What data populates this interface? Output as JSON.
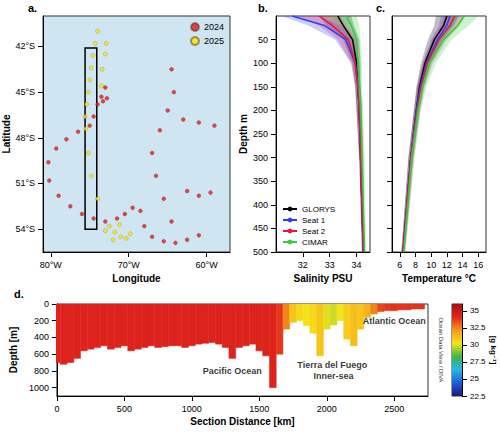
{
  "chart_data": [
    {
      "panel": "a.",
      "type": "scatter",
      "xlabel": "Longitude",
      "ylabel": "Latitude",
      "xlim": [
        -81,
        -57
      ],
      "ylim": [
        -55.5,
        -40
      ],
      "xticks": [
        {
          "value": -80,
          "label": "80°W"
        },
        {
          "value": -70,
          "label": "70°W"
        },
        {
          "value": -60,
          "label": "60°W"
        }
      ],
      "yticks": [
        {
          "value": -54,
          "label": "54°S"
        },
        {
          "value": -51,
          "label": "51°S"
        },
        {
          "value": -48,
          "label": "48°S"
        },
        {
          "value": -45,
          "label": "45°S"
        },
        {
          "value": -42,
          "label": "42°S"
        }
      ],
      "grid": false,
      "legend": "upper right",
      "box": {
        "lon": [
          -75.6,
          -74.1
        ],
        "lat": [
          -54,
          -42.1
        ]
      },
      "series": [
        {
          "name": "2024",
          "color": "#e8161b",
          "marker": "circle",
          "x": [
            -73.5,
            -73.3,
            -74.0,
            -73.0,
            -72.8,
            -74.5,
            -75.0,
            -76.5,
            -78.0,
            -79.3,
            -80.3,
            -80.2,
            -79.0,
            -77.5,
            -76.0,
            -74.5,
            -73.0,
            -71.5,
            -70.5,
            -69.5,
            -68.5,
            -68.0,
            -67.0,
            -65.5,
            -64.0,
            -62.5,
            -61.0,
            -64.5,
            -65.5,
            -66.5,
            -67.0,
            -66.0,
            -65.0,
            -64.2,
            -64.5,
            -63.0,
            -61.0,
            -59.0,
            -62.5,
            -61.0,
            -59.5
          ],
          "values": [
            -45.3,
            -45.6,
            -45.8,
            -44.7,
            -45.4,
            -46.6,
            -47.2,
            -47.6,
            -48.1,
            -48.7,
            -49.6,
            -50.8,
            -51.8,
            -52.5,
            -53.0,
            -53.3,
            -53.5,
            -53.3,
            -53.0,
            -52.6,
            -52.8,
            -53.8,
            -54.5,
            -54.8,
            -54.9,
            -54.7,
            -54.4,
            -53.5,
            -52.0,
            -50.5,
            -49.0,
            -47.5,
            -46.2,
            -45.0,
            -43.5,
            -46.8,
            -47.0,
            -47.2,
            -51.5,
            -51.8,
            -51.6
          ]
        },
        {
          "name": "2025",
          "color": "#ffe600",
          "marker": "circle",
          "x": [
            -74.0,
            -74.3,
            -74.6,
            -74.8,
            -75.0,
            -75.2,
            -75.4,
            -75.6,
            -75.5,
            -73.0,
            -73.4,
            -72.9,
            -73.5,
            -73.0,
            -72.5,
            -71.8,
            -71.0,
            -70.3,
            -69.8,
            -71.2,
            -72.0,
            -74.0,
            -74.8,
            -75.2
          ],
          "values": [
            -41.0,
            -41.8,
            -42.6,
            -43.4,
            -44.2,
            -45.0,
            -45.8,
            -46.6,
            -47.4,
            -42.5,
            -43.5,
            -41.8,
            -44.6,
            -54.1,
            -53.8,
            -54.2,
            -54.5,
            -54.6,
            -54.3,
            -53.7,
            -54.7,
            -52.0,
            -50.5,
            -49.0
          ]
        }
      ]
    },
    {
      "panel": "b.",
      "type": "line",
      "xlabel": "Salinity PSU",
      "ylabel": "Depth m",
      "xlim": [
        31,
        34.5
      ],
      "xticks": [
        32,
        33,
        34
      ],
      "ylim": [
        500,
        0
      ],
      "yticks": [
        50,
        100,
        150,
        200,
        250,
        300,
        350,
        400,
        450,
        500
      ],
      "grid": false,
      "legend": "lower left",
      "y": [
        0,
        20,
        50,
        100,
        150,
        200,
        300,
        500
      ],
      "series": [
        {
          "name": "GLORYS",
          "color": "#000000",
          "values": [
            33.3,
            33.5,
            33.85,
            34.0,
            34.05,
            34.1,
            34.15,
            34.25
          ],
          "lower": [
            32.6,
            32.9,
            33.5,
            33.85,
            33.95,
            34.0,
            34.1,
            34.2
          ],
          "upper": [
            33.8,
            33.9,
            34.1,
            34.15,
            34.15,
            34.2,
            34.25,
            34.3
          ]
        },
        {
          "name": "Seat 1",
          "color": "#2a3cff",
          "values": [
            31.6,
            32.8,
            33.6,
            33.95,
            34.05,
            34.1,
            34.15,
            34.25
          ],
          "lower": [
            31.2,
            32.2,
            33.2,
            33.8,
            33.95,
            34.0,
            34.1,
            34.2
          ],
          "upper": [
            32.6,
            33.4,
            33.9,
            34.1,
            34.15,
            34.2,
            34.2,
            34.3
          ]
        },
        {
          "name": "Seat 2",
          "color": "#e8163c",
          "values": [
            32.6,
            33.1,
            33.7,
            33.95,
            34.05,
            34.1,
            34.15,
            34.25
          ],
          "lower": [
            31.8,
            32.6,
            33.3,
            33.8,
            33.95,
            34.0,
            34.1,
            34.2
          ],
          "upper": [
            33.4,
            33.6,
            34.0,
            34.1,
            34.15,
            34.2,
            34.25,
            34.3
          ]
        },
        {
          "name": "CIMAR",
          "color": "#2fcf3a",
          "values": [
            33.6,
            33.8,
            34.0,
            34.05,
            34.1,
            34.15,
            34.2,
            34.3
          ],
          "lower": [
            33.0,
            33.4,
            33.8,
            33.95,
            34.0,
            34.05,
            34.15,
            34.25
          ],
          "upper": [
            34.0,
            34.1,
            34.15,
            34.2,
            34.2,
            34.25,
            34.3,
            34.35
          ]
        }
      ]
    },
    {
      "panel": "c.",
      "type": "line",
      "xlabel": "Temperature °C",
      "xlim": [
        5,
        17
      ],
      "xticks": [
        6,
        8,
        10,
        12,
        14,
        16
      ],
      "ylim": [
        500,
        0
      ],
      "yticks": [
        50,
        100,
        150,
        200,
        250,
        300,
        350,
        400,
        450,
        500
      ],
      "grid": false,
      "tick_labels": "x",
      "y": [
        0,
        20,
        50,
        100,
        150,
        200,
        300,
        500
      ],
      "series": [
        {
          "color": "#000000",
          "values": [
            12.0,
            11.6,
            10.4,
            9.2,
            8.5,
            8.1,
            7.4,
            6.4
          ],
          "lower": [
            10.6,
            10.4,
            9.6,
            8.7,
            8.1,
            7.8,
            7.1,
            6.2
          ],
          "upper": [
            13.4,
            12.8,
            11.4,
            9.8,
            9.0,
            8.5,
            7.7,
            6.6
          ]
        },
        {
          "color": "#2a3cff",
          "values": [
            12.4,
            12.0,
            10.8,
            9.4,
            8.6,
            8.1,
            7.4,
            6.4
          ],
          "lower": [
            11.2,
            11.0,
            10.0,
            8.9,
            8.2,
            7.8,
            7.1,
            6.2
          ],
          "upper": [
            13.6,
            13.0,
            11.6,
            10.0,
            9.1,
            8.5,
            7.7,
            6.6
          ]
        },
        {
          "color": "#e8163c",
          "values": [
            13.0,
            12.4,
            11.0,
            9.5,
            8.7,
            8.2,
            7.4,
            6.4
          ],
          "lower": [
            11.6,
            11.2,
            10.1,
            8.9,
            8.2,
            7.8,
            7.1,
            6.2
          ],
          "upper": [
            14.4,
            13.6,
            12.0,
            10.2,
            9.2,
            8.6,
            7.8,
            6.7
          ]
        },
        {
          "color": "#2fcf3a",
          "values": [
            14.2,
            13.4,
            11.6,
            9.8,
            8.9,
            8.3,
            7.5,
            6.5
          ],
          "lower": [
            12.6,
            12.2,
            10.6,
            9.1,
            8.4,
            7.9,
            7.2,
            6.3
          ],
          "upper": [
            16.0,
            14.8,
            12.6,
            10.6,
            9.4,
            8.7,
            7.9,
            6.7
          ]
        }
      ]
    },
    {
      "panel": "d.",
      "type": "section",
      "xlabel": "Section Distance [km]",
      "ylabel": "Depth [m]",
      "xlim": [
        0,
        2750
      ],
      "xticks": [
        0,
        500,
        1000,
        1500,
        2000,
        2500
      ],
      "ylim": [
        1100,
        0
      ],
      "yticks": [
        0,
        200,
        400,
        600,
        800,
        1000
      ],
      "grid": false,
      "x": [
        0,
        50,
        100,
        150,
        200,
        250,
        300,
        350,
        400,
        450,
        500,
        550,
        600,
        650,
        700,
        750,
        800,
        850,
        900,
        950,
        1000,
        1050,
        1100,
        1150,
        1200,
        1250,
        1300,
        1350,
        1400,
        1450,
        1500,
        1550,
        1600,
        1650,
        1700,
        1750,
        1800,
        1850,
        1900,
        1950,
        2000,
        2050,
        2100,
        2150,
        2200,
        2250,
        2300,
        2350,
        2400,
        2450,
        2500,
        2550,
        2600,
        2650,
        2700
      ],
      "bottom_depth": [
        700,
        720,
        700,
        650,
        560,
        540,
        520,
        500,
        540,
        520,
        500,
        560,
        540,
        520,
        500,
        520,
        510,
        500,
        500,
        520,
        500,
        480,
        470,
        460,
        480,
        520,
        650,
        520,
        500,
        480,
        560,
        620,
        1000,
        600,
        300,
        220,
        200,
        260,
        350,
        620,
        300,
        250,
        200,
        420,
        500,
        300,
        160,
        120,
        90,
        80,
        80,
        70,
        70,
        60,
        60
      ],
      "values": [
        34.3,
        34.3,
        34.3,
        34.3,
        34.3,
        34.3,
        34.3,
        34.3,
        34.3,
        34.3,
        34.3,
        34.3,
        34.3,
        34.3,
        34.3,
        34.3,
        34.3,
        34.3,
        34.3,
        34.3,
        34.3,
        34.3,
        34.3,
        34.3,
        34.3,
        34.3,
        34.3,
        34.3,
        34.3,
        34.3,
        34.3,
        34.3,
        34.3,
        33.8,
        32.5,
        31.0,
        30.5,
        30.2,
        30.5,
        31.0,
        30.0,
        29.8,
        30.2,
        30.8,
        31.2,
        31.0,
        31.5,
        32.5,
        33.5,
        33.8,
        33.9,
        33.9,
        33.9,
        33.9,
        33.9
      ],
      "colorbar": {
        "label": "[g kg⁻¹]",
        "range": [
          22.5,
          36
        ],
        "ticks": [
          22.5,
          25,
          27.5,
          30,
          32.5,
          35
        ]
      },
      "annotations": [
        {
          "text": "Pacific Ocean",
          "x": 1300,
          "y": 800
        },
        {
          "text": "Tierra del Fuego Inner-sea",
          "x": 2050,
          "y": 800
        },
        {
          "text": "Atlantic Ocean",
          "x": 2500,
          "y": 200
        }
      ],
      "credit": "Ocean Data View / DIVA"
    }
  ]
}
